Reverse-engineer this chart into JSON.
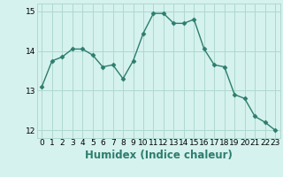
{
  "x": [
    0,
    1,
    2,
    3,
    4,
    5,
    6,
    7,
    8,
    9,
    10,
    11,
    12,
    13,
    14,
    15,
    16,
    17,
    18,
    19,
    20,
    21,
    22,
    23
  ],
  "y": [
    13.1,
    13.75,
    13.85,
    14.05,
    14.05,
    13.9,
    13.6,
    13.65,
    13.3,
    13.75,
    14.45,
    14.95,
    14.95,
    14.7,
    14.7,
    14.8,
    14.05,
    13.65,
    13.6,
    12.9,
    12.8,
    12.35,
    12.2,
    12.0
  ],
  "line_color": "#2d7d6e",
  "marker": "D",
  "marker_size": 2.5,
  "line_width": 1.0,
  "xlabel": "Humidex (Indice chaleur)",
  "ylim": [
    11.8,
    15.2
  ],
  "xlim": [
    -0.5,
    23.5
  ],
  "yticks": [
    12,
    13,
    14,
    15
  ],
  "xticks": [
    0,
    1,
    2,
    3,
    4,
    5,
    6,
    7,
    8,
    9,
    10,
    11,
    12,
    13,
    14,
    15,
    16,
    17,
    18,
    19,
    20,
    21,
    22,
    23
  ],
  "bg_color": "#d5f2ee",
  "grid_color": "#aed8d0",
  "tick_fontsize": 6.5,
  "xlabel_fontsize": 8.5
}
